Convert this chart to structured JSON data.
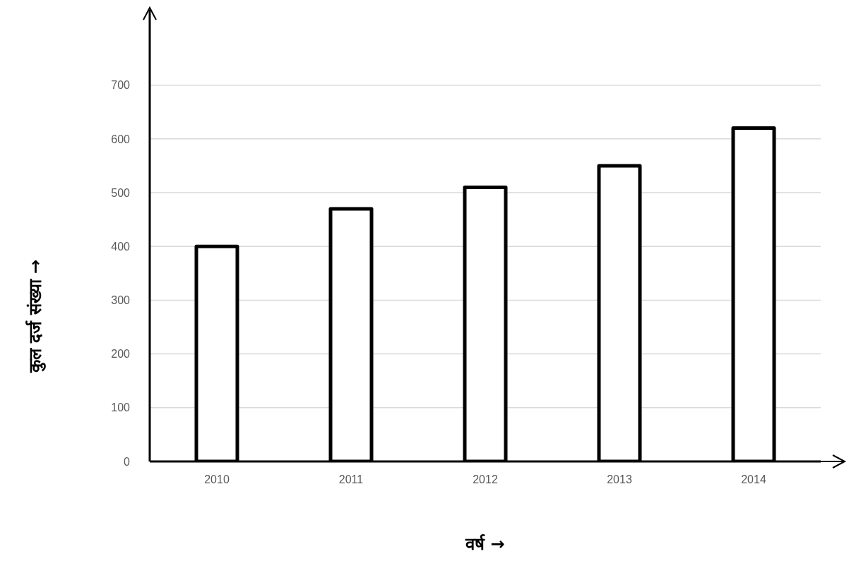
{
  "chart_data": {
    "type": "bar",
    "categories": [
      "2010",
      "2011",
      "2012",
      "2013",
      "2014"
    ],
    "values": [
      400,
      470,
      510,
      550,
      620
    ],
    "color": "#ffffff",
    "ylim": [
      0,
      840
    ],
    "yticks": [
      0,
      100,
      200,
      300,
      400,
      500,
      600,
      700
    ],
    "grid": "y",
    "xlabel": "वर्ष →",
    "ylabel": "कुल दर्ज संख्या →"
  }
}
